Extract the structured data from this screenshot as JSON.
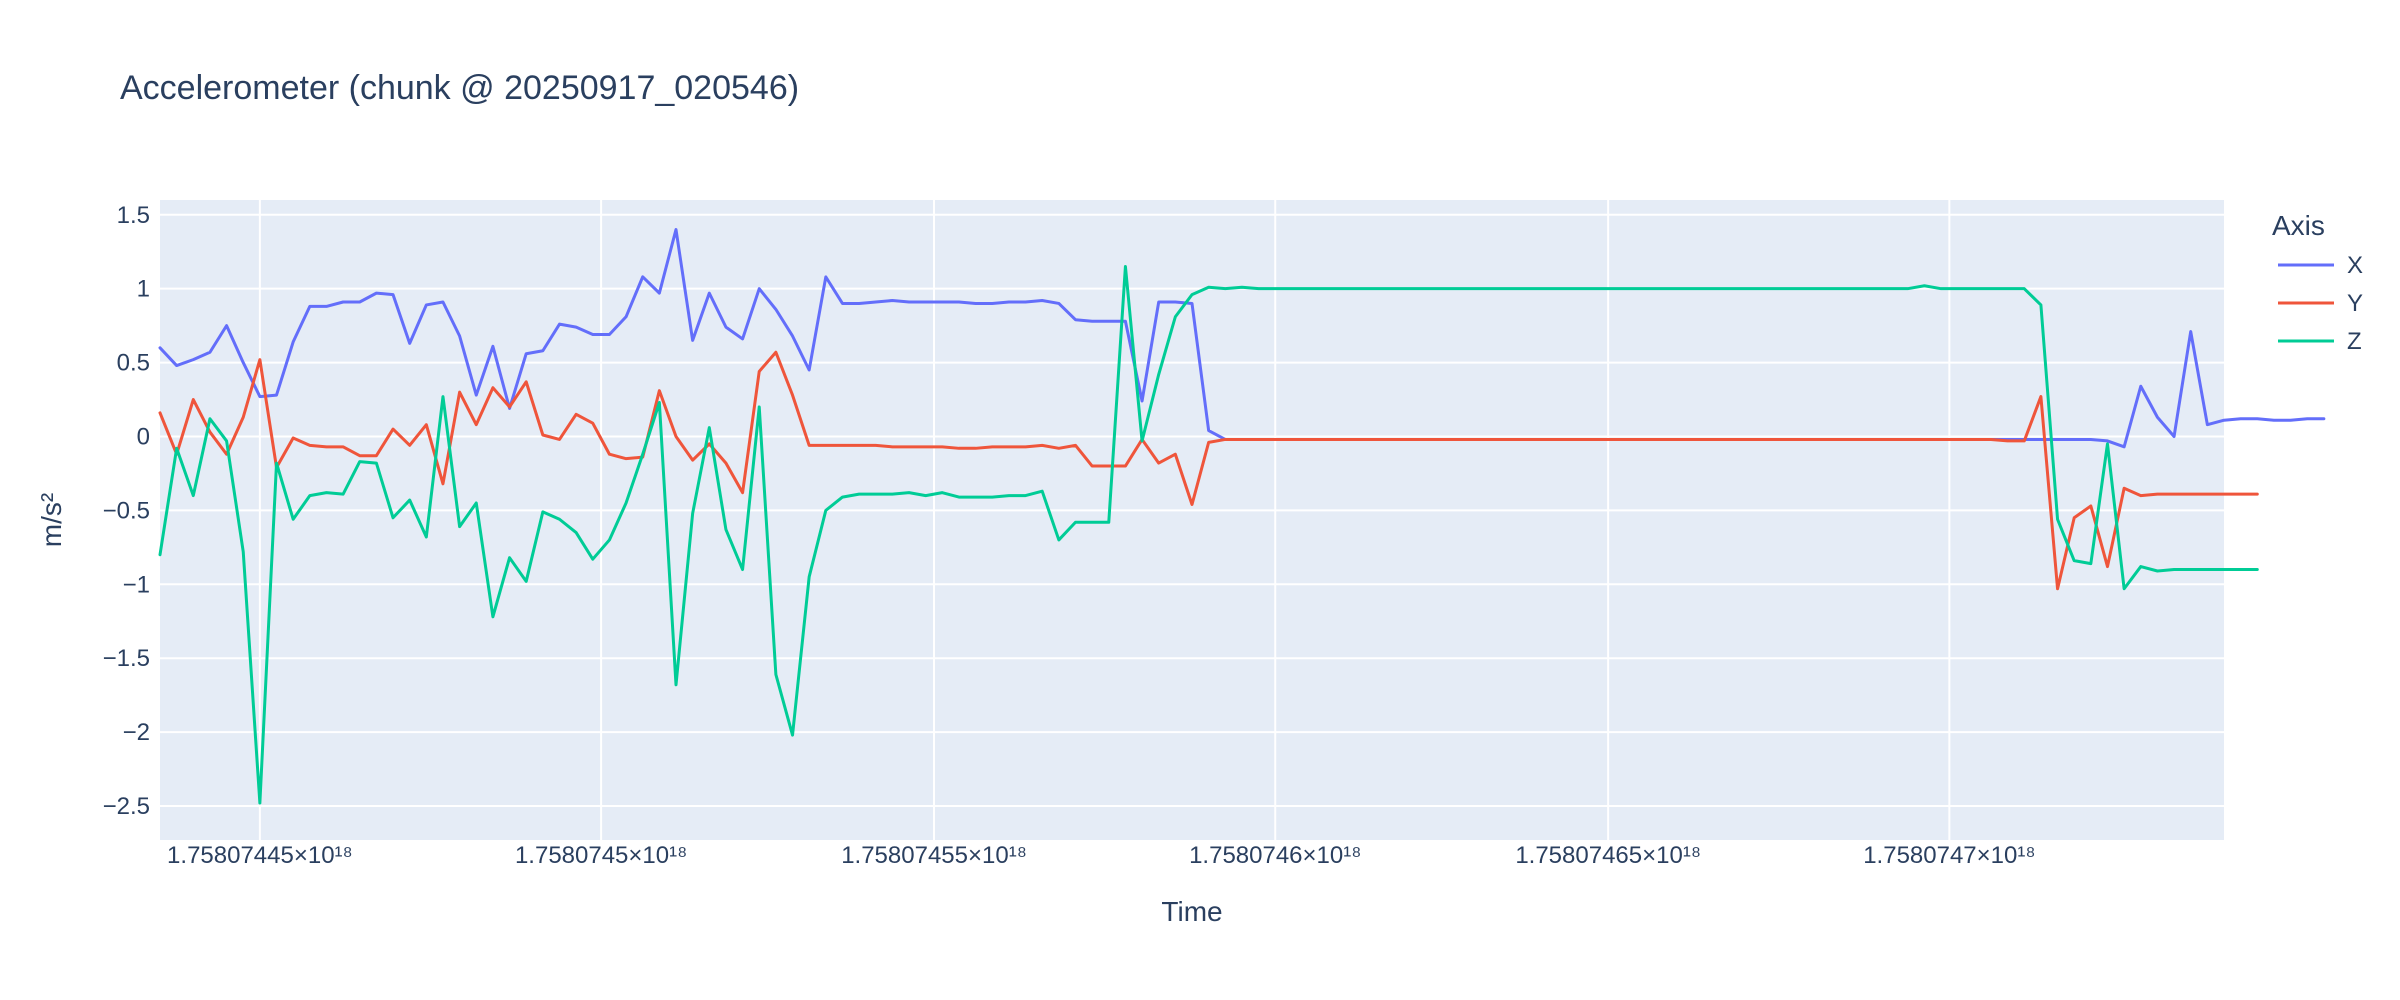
{
  "chart_data": {
    "type": "line",
    "title": "Accelerometer (chunk @ 20250917_020546)",
    "xlabel": "Time",
    "ylabel": "m/s²",
    "legend_title": "Axis",
    "legend_position": "top-right",
    "grid": true,
    "x_range_index": [
      0,
      124
    ],
    "ylim": [
      -2.73,
      1.6
    ],
    "x_ticks": [
      {
        "index": 6,
        "label": "1.75807445×10¹⁸"
      },
      {
        "index": 26.5,
        "label": "1.7580745×10¹⁸"
      },
      {
        "index": 46.5,
        "label": "1.75807455×10¹⁸"
      },
      {
        "index": 67,
        "label": "1.7580746×10¹⁸"
      },
      {
        "index": 87,
        "label": "1.75807465×10¹⁸"
      },
      {
        "index": 107.5,
        "label": "1.7580747×10¹⁸"
      }
    ],
    "y_ticks": [
      {
        "value": 1.5,
        "label": "1.5"
      },
      {
        "value": 1,
        "label": "1"
      },
      {
        "value": 0.5,
        "label": "0.5"
      },
      {
        "value": 0,
        "label": "0"
      },
      {
        "value": -0.5,
        "label": "−0.5"
      },
      {
        "value": -1,
        "label": "−1"
      },
      {
        "value": -1.5,
        "label": "−1.5"
      },
      {
        "value": -2,
        "label": "−2"
      },
      {
        "value": -2.5,
        "label": "−2.5"
      }
    ],
    "series": [
      {
        "name": "X",
        "color": "#636efa",
        "values": [
          0.6,
          0.48,
          0.52,
          0.57,
          0.75,
          0.5,
          0.27,
          0.28,
          0.64,
          0.88,
          0.88,
          0.91,
          0.91,
          0.97,
          0.96,
          0.63,
          0.89,
          0.91,
          0.68,
          0.28,
          0.61,
          0.19,
          0.56,
          0.58,
          0.76,
          0.74,
          0.69,
          0.69,
          0.81,
          1.08,
          0.97,
          1.4,
          0.65,
          0.97,
          0.74,
          0.66,
          1.0,
          0.86,
          0.68,
          0.45,
          1.08,
          0.9,
          0.9,
          0.91,
          0.92,
          0.91,
          0.91,
          0.91,
          0.91,
          0.9,
          0.9,
          0.91,
          0.91,
          0.92,
          0.9,
          0.79,
          0.78,
          0.78,
          0.78,
          0.24,
          0.91,
          0.91,
          0.9,
          0.04,
          -0.02,
          -0.02,
          -0.02,
          -0.02,
          -0.02,
          -0.02,
          -0.02,
          -0.02,
          -0.02,
          -0.02,
          -0.02,
          -0.02,
          -0.02,
          -0.02,
          -0.02,
          -0.02,
          -0.02,
          -0.02,
          -0.02,
          -0.02,
          -0.02,
          -0.02,
          -0.02,
          -0.02,
          -0.02,
          -0.02,
          -0.02,
          -0.02,
          -0.02,
          -0.02,
          -0.02,
          -0.02,
          -0.02,
          -0.02,
          -0.02,
          -0.02,
          -0.02,
          -0.02,
          -0.02,
          -0.02,
          -0.02,
          -0.02,
          -0.02,
          -0.02,
          -0.02,
          -0.02,
          -0.02,
          -0.02,
          -0.02,
          -0.02,
          -0.02,
          -0.02,
          -0.02,
          -0.03,
          -0.07,
          0.34,
          0.13,
          0.0,
          0.71,
          0.08,
          0.11,
          0.12,
          0.12,
          0.11,
          0.11,
          0.12,
          0.12
        ]
      },
      {
        "name": "Y",
        "color": "#ef553b",
        "values": [
          0.16,
          -0.12,
          0.25,
          0.03,
          -0.12,
          0.13,
          0.52,
          -0.21,
          -0.01,
          -0.06,
          -0.07,
          -0.07,
          -0.13,
          -0.13,
          0.05,
          -0.06,
          0.08,
          -0.32,
          0.3,
          0.08,
          0.33,
          0.2,
          0.37,
          0.01,
          -0.02,
          0.15,
          0.09,
          -0.12,
          -0.15,
          -0.14,
          0.31,
          0.0,
          -0.16,
          -0.05,
          -0.18,
          -0.38,
          0.44,
          0.57,
          0.28,
          -0.06,
          -0.06,
          -0.06,
          -0.06,
          -0.06,
          -0.07,
          -0.07,
          -0.07,
          -0.07,
          -0.08,
          -0.08,
          -0.07,
          -0.07,
          -0.07,
          -0.06,
          -0.08,
          -0.06,
          -0.2,
          -0.2,
          -0.2,
          -0.02,
          -0.18,
          -0.12,
          -0.46,
          -0.04,
          -0.02,
          -0.02,
          -0.02,
          -0.02,
          -0.02,
          -0.02,
          -0.02,
          -0.02,
          -0.02,
          -0.02,
          -0.02,
          -0.02,
          -0.02,
          -0.02,
          -0.02,
          -0.02,
          -0.02,
          -0.02,
          -0.02,
          -0.02,
          -0.02,
          -0.02,
          -0.02,
          -0.02,
          -0.02,
          -0.02,
          -0.02,
          -0.02,
          -0.02,
          -0.02,
          -0.02,
          -0.02,
          -0.02,
          -0.02,
          -0.02,
          -0.02,
          -0.02,
          -0.02,
          -0.02,
          -0.02,
          -0.02,
          -0.02,
          -0.02,
          -0.02,
          -0.02,
          -0.02,
          -0.02,
          -0.03,
          -0.03,
          0.27,
          -1.03,
          -0.55,
          -0.47,
          -0.88,
          -0.35,
          -0.4,
          -0.39,
          -0.39,
          -0.39,
          -0.39,
          -0.39,
          -0.39,
          -0.39
        ]
      },
      {
        "name": "Z",
        "color": "#00cc96",
        "values": [
          -0.8,
          -0.08,
          -0.4,
          0.12,
          -0.03,
          -0.78,
          -2.48,
          -0.18,
          -0.56,
          -0.4,
          -0.38,
          -0.39,
          -0.17,
          -0.18,
          -0.55,
          -0.43,
          -0.68,
          0.27,
          -0.61,
          -0.45,
          -1.22,
          -0.82,
          -0.98,
          -0.51,
          -0.56,
          -0.65,
          -0.83,
          -0.7,
          -0.45,
          -0.12,
          0.23,
          -1.68,
          -0.52,
          0.06,
          -0.63,
          -0.9,
          0.2,
          -1.61,
          -2.02,
          -0.95,
          -0.5,
          -0.41,
          -0.39,
          -0.39,
          -0.39,
          -0.38,
          -0.4,
          -0.38,
          -0.41,
          -0.41,
          -0.41,
          -0.4,
          -0.4,
          -0.37,
          -0.7,
          -0.58,
          -0.58,
          -0.58,
          1.15,
          -0.03,
          0.42,
          0.81,
          0.96,
          1.01,
          1.0,
          1.01,
          1.0,
          1.0,
          1.0,
          1.0,
          1.0,
          1.0,
          1.0,
          1.0,
          1.0,
          1.0,
          1.0,
          1.0,
          1.0,
          1.0,
          1.0,
          1.0,
          1.0,
          1.0,
          1.0,
          1.0,
          1.0,
          1.0,
          1.0,
          1.0,
          1.0,
          1.0,
          1.0,
          1.0,
          1.0,
          1.0,
          1.0,
          1.0,
          1.0,
          1.0,
          1.0,
          1.0,
          1.0,
          1.0,
          1.0,
          1.0,
          1.02,
          1.0,
          1.0,
          1.0,
          1.0,
          1.0,
          1.0,
          0.89,
          -0.56,
          -0.84,
          -0.86,
          -0.05,
          -1.03,
          -0.88,
          -0.91,
          -0.9,
          -0.9,
          -0.9,
          -0.9,
          -0.9,
          -0.9
        ]
      }
    ]
  }
}
